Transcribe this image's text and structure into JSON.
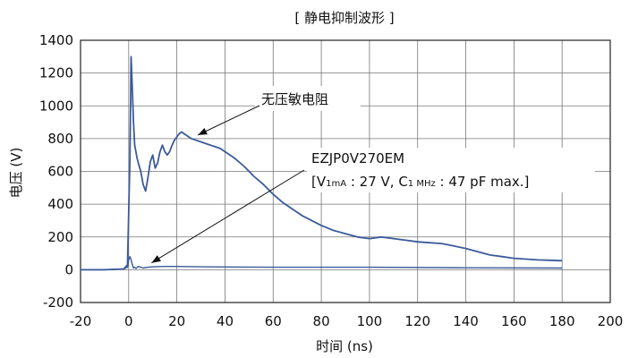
{
  "chart_data": {
    "type": "line",
    "title": "[ 静电抑制波形 ]",
    "xlabel": "时间 (ns)",
    "ylabel": "电压 (V)",
    "xlim": [
      -20,
      200
    ],
    "ylim": [
      -200,
      1400
    ],
    "x_ticks": [
      -20,
      0,
      20,
      40,
      60,
      80,
      100,
      120,
      140,
      160,
      180,
      200
    ],
    "y_ticks": [
      -200,
      0,
      200,
      400,
      600,
      800,
      1000,
      1200,
      1400
    ],
    "grid": true,
    "line_color": "#3b5a9a",
    "series": [
      {
        "name": "无压敏电阻",
        "x": [
          -20,
          -10,
          -2,
          -0.5,
          0.5,
          1,
          1.5,
          2,
          2.5,
          3,
          3.5,
          4,
          5,
          6,
          7,
          8,
          9,
          10,
          11,
          12,
          13,
          14,
          15,
          16,
          17,
          18,
          19,
          20,
          21,
          22,
          24,
          26,
          28,
          30,
          32,
          34,
          36,
          38,
          40,
          44,
          48,
          52,
          56,
          60,
          64,
          68,
          72,
          76,
          80,
          85,
          90,
          95,
          100,
          105,
          110,
          115,
          120,
          125,
          130,
          135,
          140,
          145,
          150,
          155,
          160,
          165,
          170,
          175,
          180
        ],
        "y": [
          0,
          0,
          5,
          30,
          680,
          1300,
          1100,
          900,
          760,
          720,
          680,
          650,
          600,
          520,
          480,
          560,
          660,
          700,
          620,
          650,
          720,
          760,
          720,
          700,
          720,
          760,
          790,
          810,
          830,
          840,
          820,
          800,
          790,
          780,
          770,
          760,
          750,
          740,
          720,
          680,
          630,
          570,
          520,
          460,
          410,
          370,
          330,
          300,
          270,
          240,
          220,
          200,
          190,
          200,
          190,
          180,
          170,
          165,
          160,
          145,
          130,
          110,
          90,
          80,
          70,
          65,
          60,
          58,
          55
        ]
      },
      {
        "name": "EZJP0V270EM",
        "x": [
          -20,
          -10,
          -2,
          -0.5,
          0,
          0.5,
          1,
          1.5,
          2,
          2.5,
          3,
          4,
          5,
          6,
          8,
          10,
          15,
          20,
          30,
          60,
          100,
          140,
          180
        ],
        "y": [
          0,
          0,
          5,
          15,
          60,
          80,
          60,
          30,
          10,
          15,
          8,
          20,
          15,
          10,
          15,
          18,
          20,
          20,
          18,
          15,
          15,
          12,
          10
        ]
      }
    ],
    "annotations": [
      {
        "text": "无压敏电阻",
        "target": [
          28,
          800
        ]
      },
      {
        "lines": [
          "EZJP0V270EM",
          "[V1mA : 27 V, C1 MHz : 47 pF max.]"
        ],
        "target": [
          8,
          20
        ]
      }
    ]
  },
  "labels": {
    "ann1": "无压敏电阻",
    "ann2_line1": "EZJP0V270EM",
    "ann2_open": "[V",
    "ann2_sub1": "1mA",
    "ann2_mid": " : 27 V, C",
    "ann2_sub2": "1 MHz",
    "ann2_end": " : 47 pF max.]"
  }
}
